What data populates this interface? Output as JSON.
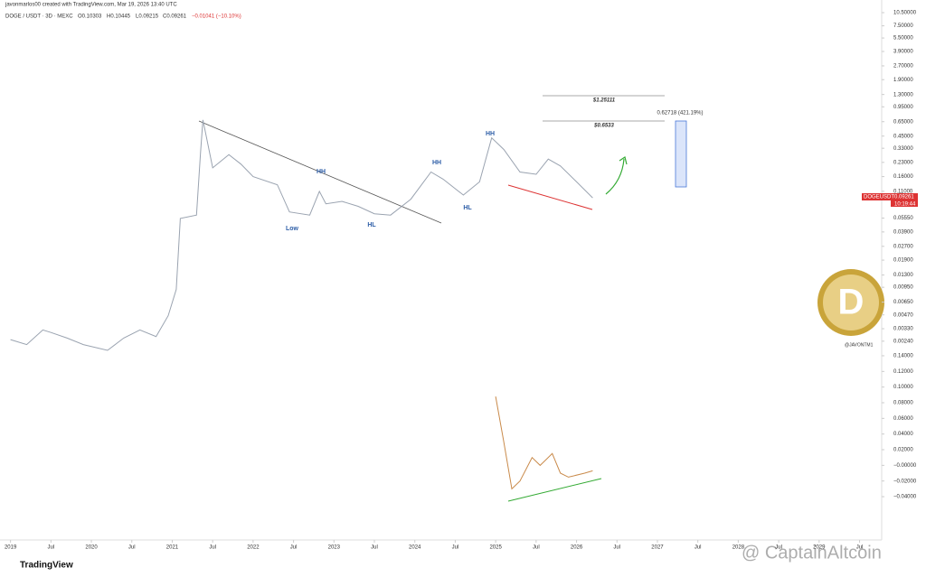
{
  "header": {
    "credit": "javonmarlos00 created with TradingView.com, Mar 19, 2026 13:40 UTC",
    "symbol": "DOGE / USDT · 3D · MEXC",
    "open": "O0.10303",
    "high": "H0.10445",
    "low": "L0.09215",
    "close": "C0.09261",
    "change": "−0.01041 (−10.10%)"
  },
  "price_tag": {
    "symbol": "DOGEUSDT",
    "price": "0.09261",
    "timer": "10:19:44"
  },
  "ruler": {
    "top": "$1.25111",
    "mid": "$0.6533",
    "gain": "0.62718 (421.19%)"
  },
  "annotations": [
    "Low",
    "HH",
    "HL",
    "HH",
    "HL",
    "HH"
  ],
  "watermark": {
    "handle": "@JAVONTM1",
    "brand": "TradingView",
    "site": "@ CaptainAltcoin"
  },
  "chart_data": [
    {
      "type": "line",
      "log_scale": true,
      "color": "#9aa3b0",
      "x": [
        2019.0,
        2019.2,
        2019.4,
        2019.5,
        2019.7,
        2019.9,
        2020.2,
        2020.4,
        2020.6,
        2020.8,
        2020.95,
        2021.05,
        2021.1,
        2021.3,
        2021.35,
        2021.38,
        2021.5,
        2021.7,
        2021.85,
        2022.0,
        2022.3,
        2022.45,
        2022.7,
        2022.82,
        2022.9,
        2023.1,
        2023.3,
        2023.5,
        2023.7,
        2023.95,
        2024.2,
        2024.35,
        2024.6,
        2024.8,
        2024.95,
        2025.1,
        2025.3,
        2025.5,
        2025.65,
        2025.8,
        2026.0,
        2026.2
      ],
      "values": [
        0.0025,
        0.0022,
        0.0032,
        0.003,
        0.0026,
        0.0022,
        0.0019,
        0.0026,
        0.0032,
        0.0027,
        0.0046,
        0.009,
        0.055,
        0.06,
        0.3,
        0.68,
        0.2,
        0.28,
        0.22,
        0.16,
        0.13,
        0.065,
        0.06,
        0.11,
        0.08,
        0.085,
        0.075,
        0.062,
        0.06,
        0.09,
        0.18,
        0.15,
        0.1,
        0.14,
        0.43,
        0.32,
        0.18,
        0.17,
        0.25,
        0.21,
        0.14,
        0.093
      ],
      "xlim": [
        2018.87,
        2029.55
      ],
      "xticks": [
        2019,
        {
          "value": 2019.5,
          "label": "Jul"
        },
        2020,
        {
          "value": 2020.5,
          "label": "Jul"
        },
        2021,
        {
          "value": 2021.5,
          "label": "Jul"
        },
        2022,
        {
          "value": 2022.5,
          "label": "Jul"
        },
        2023,
        {
          "value": 2023.5,
          "label": "Jul"
        },
        2024,
        {
          "value": 2024.5,
          "label": "Jul"
        },
        2025,
        {
          "value": 2025.5,
          "label": "Jul"
        },
        2026,
        {
          "value": 2026.5,
          "label": "Jul"
        },
        2027,
        {
          "value": 2027.5,
          "label": "Jul"
        },
        2028,
        {
          "value": 2028.5,
          "label": "Jul"
        },
        2029,
        {
          "value": 2029.5,
          "label": "Jul"
        }
      ],
      "ylim": [
        0.0019,
        14.5
      ],
      "yticks": [
        {
          "value": 10.5,
          "label": "10.50000"
        },
        {
          "value": 7.5,
          "label": "7.50000"
        },
        {
          "value": 5.5,
          "label": "5.50000"
        },
        {
          "value": 3.9,
          "label": "3.90000"
        },
        {
          "value": 2.7,
          "label": "2.70000"
        },
        {
          "value": 1.9,
          "label": "1.90000"
        },
        {
          "value": 1.3,
          "label": "1.30000"
        },
        {
          "value": 0.95,
          "label": "0.95000"
        },
        {
          "value": 0.65,
          "label": "0.65000"
        },
        {
          "value": 0.45,
          "label": "0.45000"
        },
        {
          "value": 0.33,
          "label": "0.33000"
        },
        {
          "value": 0.23,
          "label": "0.23000"
        },
        {
          "value": 0.16,
          "label": "0.16000"
        },
        {
          "value": 0.11,
          "label": "0.11000"
        },
        {
          "value": 0.0555,
          "label": "0.05550"
        },
        {
          "value": 0.039,
          "label": "0.03900"
        },
        {
          "value": 0.027,
          "label": "0.02700"
        },
        {
          "value": 0.019,
          "label": "0.01900"
        },
        {
          "value": 0.013,
          "label": "0.01300"
        },
        {
          "value": 0.0095,
          "label": "0.00950"
        },
        {
          "value": 0.0065,
          "label": "0.00650"
        },
        {
          "value": 0.0047,
          "label": "0.00470"
        },
        {
          "value": 0.0033,
          "label": "0.00330"
        },
        {
          "value": 0.0024,
          "label": "0.00240"
        }
      ]
    },
    {
      "type": "line",
      "color": "#c98a4a",
      "x": [
        2025.0,
        2025.1,
        2025.2,
        2025.3,
        2025.45,
        2025.55,
        2025.7,
        2025.8,
        2025.9,
        2026.1,
        2026.2
      ],
      "values": [
        0.088,
        0.03,
        -0.03,
        -0.02,
        0.01,
        0.0,
        0.015,
        -0.01,
        -0.015,
        -0.01,
        -0.007
      ],
      "ylim": [
        -0.05,
        0.15
      ],
      "yticks": [
        {
          "value": 0.14,
          "label": "0.14000"
        },
        {
          "value": 0.12,
          "label": "0.12000"
        },
        {
          "value": 0.1,
          "label": "0.10000"
        },
        {
          "value": 0.08,
          "label": "0.08000"
        },
        {
          "value": 0.06,
          "label": "0.06000"
        },
        {
          "value": 0.04,
          "label": "0.04000"
        },
        {
          "value": 0.02,
          "label": "0.02000"
        },
        {
          "value": 0,
          "label": "−0.00000"
        },
        {
          "value": -0.02,
          "label": "−0.02000"
        },
        {
          "value": -0.04,
          "label": "−0.04000"
        }
      ]
    }
  ]
}
